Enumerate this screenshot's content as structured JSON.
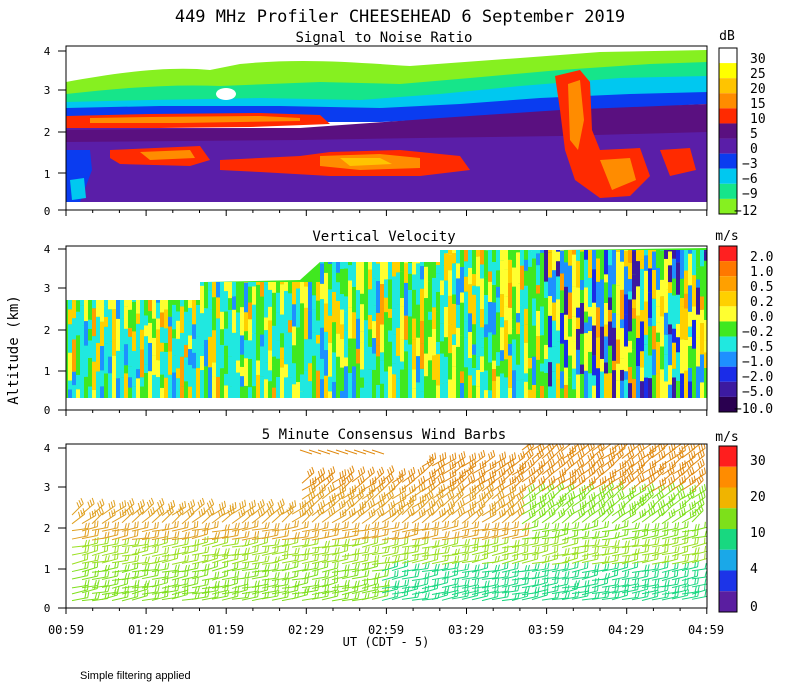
{
  "title": "449 MHz Profiler CHEESEHEAD  6 September 2019",
  "ylabel": "Altitude (km)",
  "xlabel": "UT  (CDT - 5)",
  "x_ticks": [
    "00:59",
    "01:29",
    "01:59",
    "02:29",
    "02:59",
    "03:29",
    "03:59",
    "04:29",
    "04:59"
  ],
  "y_ticks": [
    "0",
    "1",
    "2",
    "3",
    "4"
  ],
  "footnote": "Simple filtering applied",
  "chart_data": [
    {
      "type": "heatmap",
      "title": "Signal to Noise Ratio",
      "x_range_ut": [
        "00:59",
        "04:59"
      ],
      "ylim": [
        0,
        4
      ],
      "colorbar": {
        "unit": "dB",
        "levels": [
          "30",
          "25",
          "20",
          "15",
          "10",
          "5",
          "0",
          "−3",
          "−6",
          "−9",
          "−12"
        ],
        "colors": [
          "#ffffff",
          "#ffff00",
          "#ffc400",
          "#ff8c00",
          "#ff2a00",
          "#5a1080",
          "#5a1ea8",
          "#0a3cf0",
          "#00c8f0",
          "#16e58a",
          "#86f020"
        ]
      }
    },
    {
      "type": "heatmap",
      "title": "Vertical Velocity",
      "x_range_ut": [
        "00:59",
        "04:59"
      ],
      "ylim": [
        0,
        4
      ],
      "colorbar": {
        "unit": "m/s",
        "levels": [
          "2.0",
          "1.0",
          "0.5",
          "0.2",
          "0.0",
          "−0.2",
          "−0.5",
          "−1.0",
          "−2.0",
          "−5.0",
          "−10.0"
        ],
        "colors": [
          "#ff2020",
          "#ff7800",
          "#ffa000",
          "#ffd000",
          "#ffff30",
          "#40e820",
          "#20e8e0",
          "#1e90ff",
          "#1a2ce8",
          "#3c1aa0",
          "#2a0050"
        ]
      }
    },
    {
      "type": "scatter",
      "title": "5 Minute Consensus Wind Barbs",
      "x_range_ut": [
        "00:59",
        "04:59"
      ],
      "ylim": [
        0,
        4
      ],
      "colorbar": {
        "unit": "m/s",
        "levels": [
          "30",
          "20",
          "10",
          "4",
          "0"
        ],
        "colors": [
          "#ff1e1e",
          "#ff8c00",
          "#f0b400",
          "#7de01a",
          "#18d880",
          "#1aa8e8",
          "#1c34e8",
          "#5a1ea0"
        ]
      }
    }
  ]
}
